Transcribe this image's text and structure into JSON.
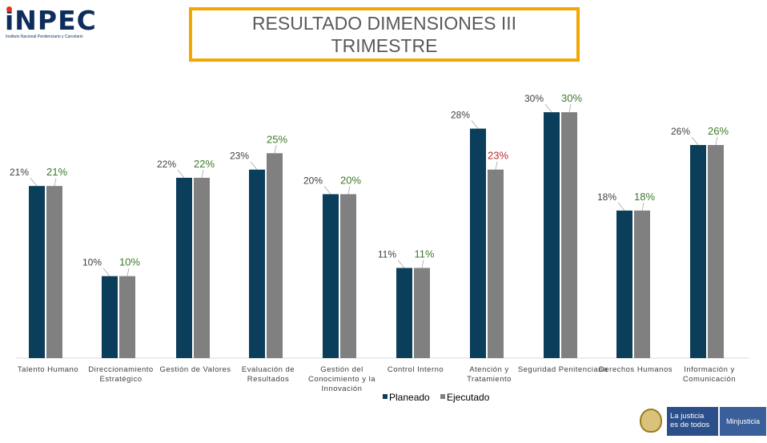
{
  "header": {
    "logo_text": "iNPEC",
    "logo_subtext": "Instituto Nacional Penitenciario y Carcelario",
    "title": "RESULTADO DIMENSIONES III TRIMESTRE"
  },
  "footer": {
    "brand_line1": "La justicia",
    "brand_line2": "es de todos",
    "ministry": "Minjusticia"
  },
  "colors": {
    "planeado": "#0a3e5a",
    "ejecutado": "#808080",
    "label_planeado": "#404040",
    "label_ejecutado_default": "#3d7a2a",
    "label_ejecutado_alert": "#c0282c"
  },
  "chart_data": {
    "type": "bar",
    "title": "RESULTADO DIMENSIONES III TRIMESTRE",
    "categories": [
      "Talento Humano",
      "Direccionamiento Estratégico",
      "Gestión de Valores",
      "Evaluación de Resultados",
      "Gestión del Conocimiento y la Innovación",
      "Control Interno",
      "Atención y Tratamiento",
      "Seguridad Penitenciaria",
      "Derechos Humanos",
      "Información y Comunicación"
    ],
    "series": [
      {
        "name": "Planeado",
        "values": [
          21,
          10,
          22,
          23,
          20,
          11,
          28,
          30,
          18,
          26
        ],
        "labels": [
          "21%",
          "10%",
          "22%",
          "23%",
          "20%",
          "11%",
          "28%",
          "30%",
          "18%",
          "26%"
        ]
      },
      {
        "name": "Ejecutado",
        "values": [
          21,
          10,
          22,
          25,
          20,
          11,
          23,
          30,
          18,
          26
        ],
        "labels": [
          "21%",
          "10%",
          "22%",
          "25%",
          "20%",
          "11%",
          "23%",
          "30%",
          "18%",
          "26%"
        ]
      }
    ],
    "ylim": [
      0,
      30
    ],
    "grid": false,
    "legend_position": "bottom"
  }
}
